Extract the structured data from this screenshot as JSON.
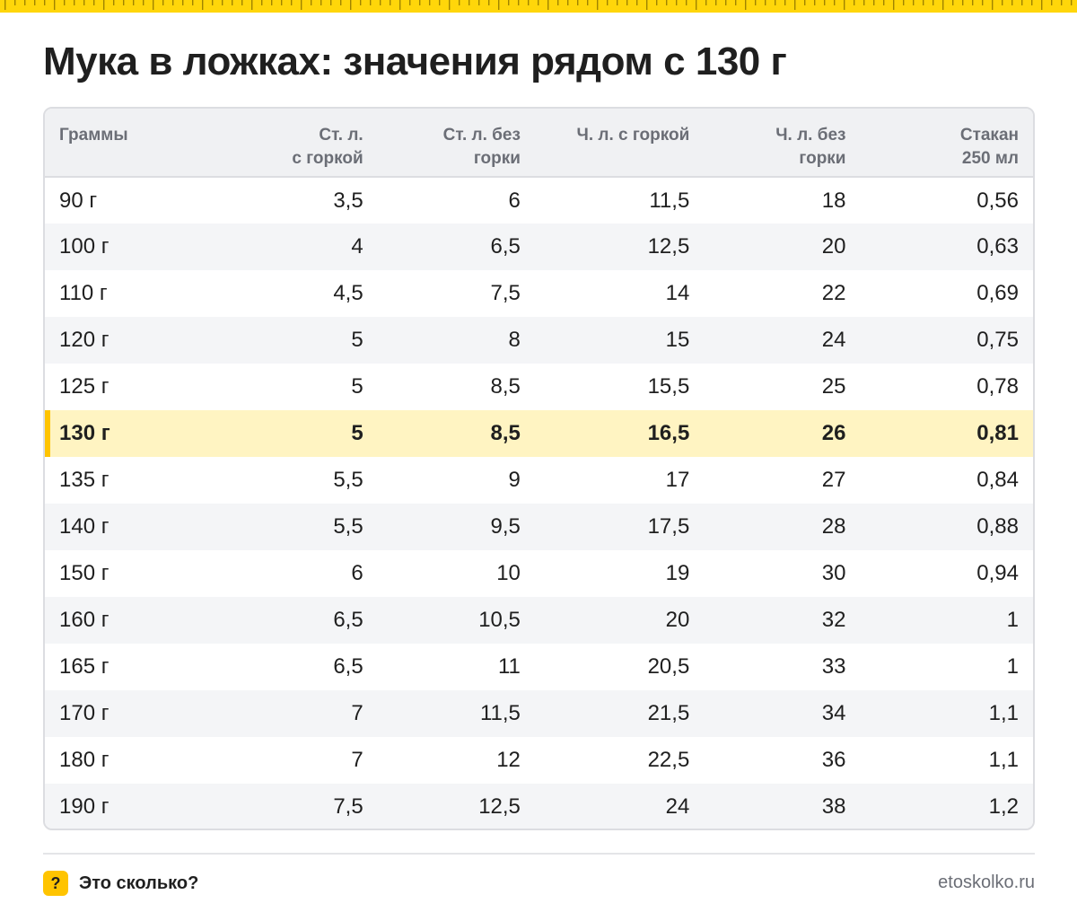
{
  "title": "Мука в ложках: значения рядом с 130 г",
  "table": {
    "headers": [
      [
        "Граммы"
      ],
      [
        "Ст. л.",
        "с горкой"
      ],
      [
        "Ст. л. без",
        "горки"
      ],
      [
        "Ч. л. с горкой"
      ],
      [
        "Ч. л. без",
        "горки"
      ],
      [
        "Стакан",
        "250 мл"
      ]
    ],
    "highlight_row": 5,
    "rows": [
      [
        "90 г",
        "3,5",
        "6",
        "11,5",
        "18",
        "0,56"
      ],
      [
        "100 г",
        "4",
        "6,5",
        "12,5",
        "20",
        "0,63"
      ],
      [
        "110 г",
        "4,5",
        "7,5",
        "14",
        "22",
        "0,69"
      ],
      [
        "120 г",
        "5",
        "8",
        "15",
        "24",
        "0,75"
      ],
      [
        "125 г",
        "5",
        "8,5",
        "15,5",
        "25",
        "0,78"
      ],
      [
        "130 г",
        "5",
        "8,5",
        "16,5",
        "26",
        "0,81"
      ],
      [
        "135 г",
        "5,5",
        "9",
        "17",
        "27",
        "0,84"
      ],
      [
        "140 г",
        "5,5",
        "9,5",
        "17,5",
        "28",
        "0,88"
      ],
      [
        "150 г",
        "6",
        "10",
        "19",
        "30",
        "0,94"
      ],
      [
        "160 г",
        "6,5",
        "10,5",
        "20",
        "32",
        "1"
      ],
      [
        "165 г",
        "6,5",
        "11",
        "20,5",
        "33",
        "1"
      ],
      [
        "170 г",
        "7",
        "11,5",
        "21,5",
        "34",
        "1,1"
      ],
      [
        "180 г",
        "7",
        "12",
        "22,5",
        "36",
        "1,1"
      ],
      [
        "190 г",
        "7,5",
        "12,5",
        "24",
        "38",
        "1,2"
      ]
    ]
  },
  "footer": {
    "badge": "?",
    "brand": "Это сколько?",
    "site": "etoskolko.ru"
  },
  "colors": {
    "accent": "#ffc400",
    "ruler": "#ffd60a",
    "highlight_bg": "#fff4c2",
    "header_bg": "#f0f1f3",
    "muted_text": "#6b6e76"
  },
  "icons": {
    "ruler": "ruler-strip",
    "badge": "question-badge-icon"
  }
}
